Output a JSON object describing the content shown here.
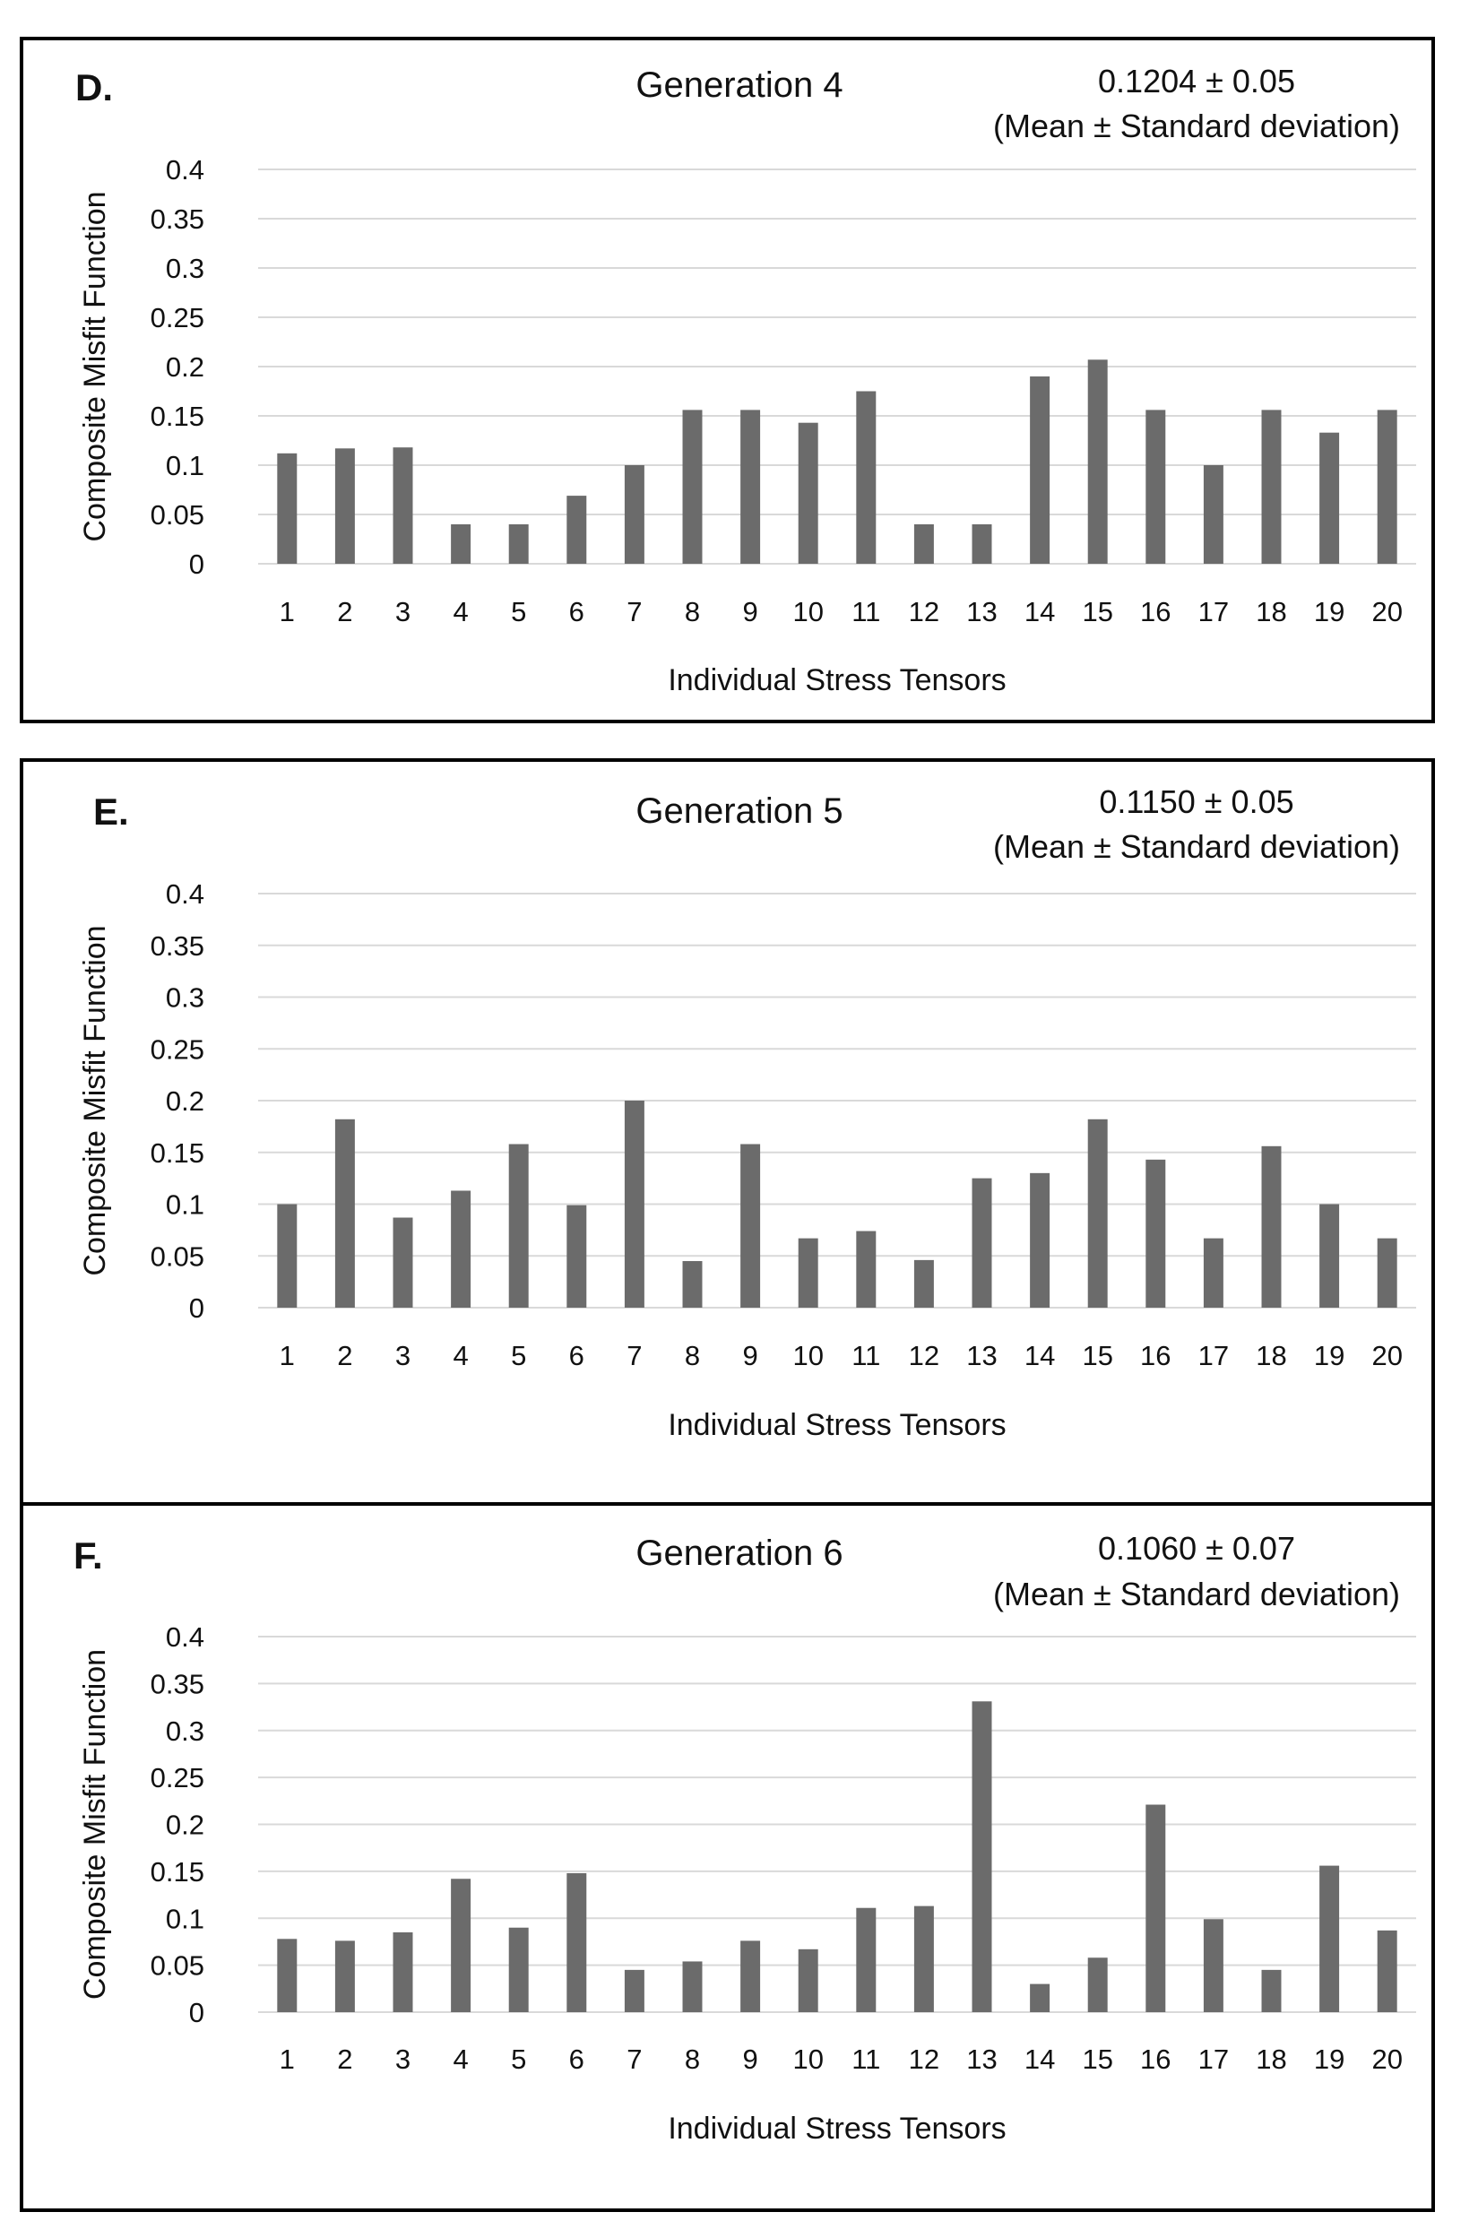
{
  "colors": {
    "bar": "#6b6b6b",
    "grid": "#d9d9d9",
    "frame": "#000000",
    "text": "#111111"
  },
  "chart_data": [
    {
      "type": "bar",
      "panel_label": "D.",
      "title": "Generation 4",
      "stat_value": "0.1204 ± 0.05",
      "stat_note": "(Mean ± Standard deviation)",
      "xlabel": "Individual Stress Tensors",
      "ylabel": "Composite Misfit Function",
      "ylim": [
        0,
        0.4
      ],
      "yticks": [
        "0",
        "0.05",
        "0.1",
        "0.15",
        "0.2",
        "0.25",
        "0.3",
        "0.35",
        "0.4"
      ],
      "grid": true,
      "categories": [
        "1",
        "2",
        "3",
        "4",
        "5",
        "6",
        "7",
        "8",
        "9",
        "10",
        "11",
        "12",
        "13",
        "14",
        "15",
        "16",
        "17",
        "18",
        "19",
        "20"
      ],
      "values": [
        0.112,
        0.117,
        0.118,
        0.04,
        0.04,
        0.069,
        0.1,
        0.156,
        0.156,
        0.143,
        0.175,
        0.04,
        0.04,
        0.19,
        0.207,
        0.156,
        0.1,
        0.156,
        0.133,
        0.156
      ]
    },
    {
      "type": "bar",
      "panel_label": "E.",
      "title": "Generation 5",
      "stat_value": "0.1150 ± 0.05",
      "stat_note": "(Mean ± Standard deviation)",
      "xlabel": "Individual Stress Tensors",
      "ylabel": "Composite Misfit Function",
      "ylim": [
        0,
        0.4
      ],
      "yticks": [
        "0",
        "0.05",
        "0.1",
        "0.15",
        "0.2",
        "0.25",
        "0.3",
        "0.35",
        "0.4"
      ],
      "grid": true,
      "categories": [
        "1",
        "2",
        "3",
        "4",
        "5",
        "6",
        "7",
        "8",
        "9",
        "10",
        "11",
        "12",
        "13",
        "14",
        "15",
        "16",
        "17",
        "18",
        "19",
        "20"
      ],
      "values": [
        0.1,
        0.182,
        0.087,
        0.113,
        0.158,
        0.099,
        0.2,
        0.045,
        0.158,
        0.067,
        0.074,
        0.046,
        0.125,
        0.13,
        0.182,
        0.143,
        0.067,
        0.156,
        0.1,
        0.067
      ]
    },
    {
      "type": "bar",
      "panel_label": "F.",
      "title": "Generation 6",
      "stat_value": "0.1060 ± 0.07",
      "stat_note": "(Mean ± Standard deviation)",
      "xlabel": "Individual Stress Tensors",
      "ylabel": "Composite Misfit Function",
      "ylim": [
        0,
        0.4
      ],
      "yticks": [
        "0",
        "0.05",
        "0.1",
        "0.15",
        "0.2",
        "0.25",
        "0.3",
        "0.35",
        "0.4"
      ],
      "grid": true,
      "categories": [
        "1",
        "2",
        "3",
        "4",
        "5",
        "6",
        "7",
        "8",
        "9",
        "10",
        "11",
        "12",
        "13",
        "14",
        "15",
        "16",
        "17",
        "18",
        "19",
        "20"
      ],
      "values": [
        0.078,
        0.076,
        0.085,
        0.142,
        0.09,
        0.148,
        0.045,
        0.054,
        0.076,
        0.067,
        0.111,
        0.113,
        0.331,
        0.03,
        0.058,
        0.221,
        0.099,
        0.045,
        0.156,
        0.087
      ]
    }
  ]
}
